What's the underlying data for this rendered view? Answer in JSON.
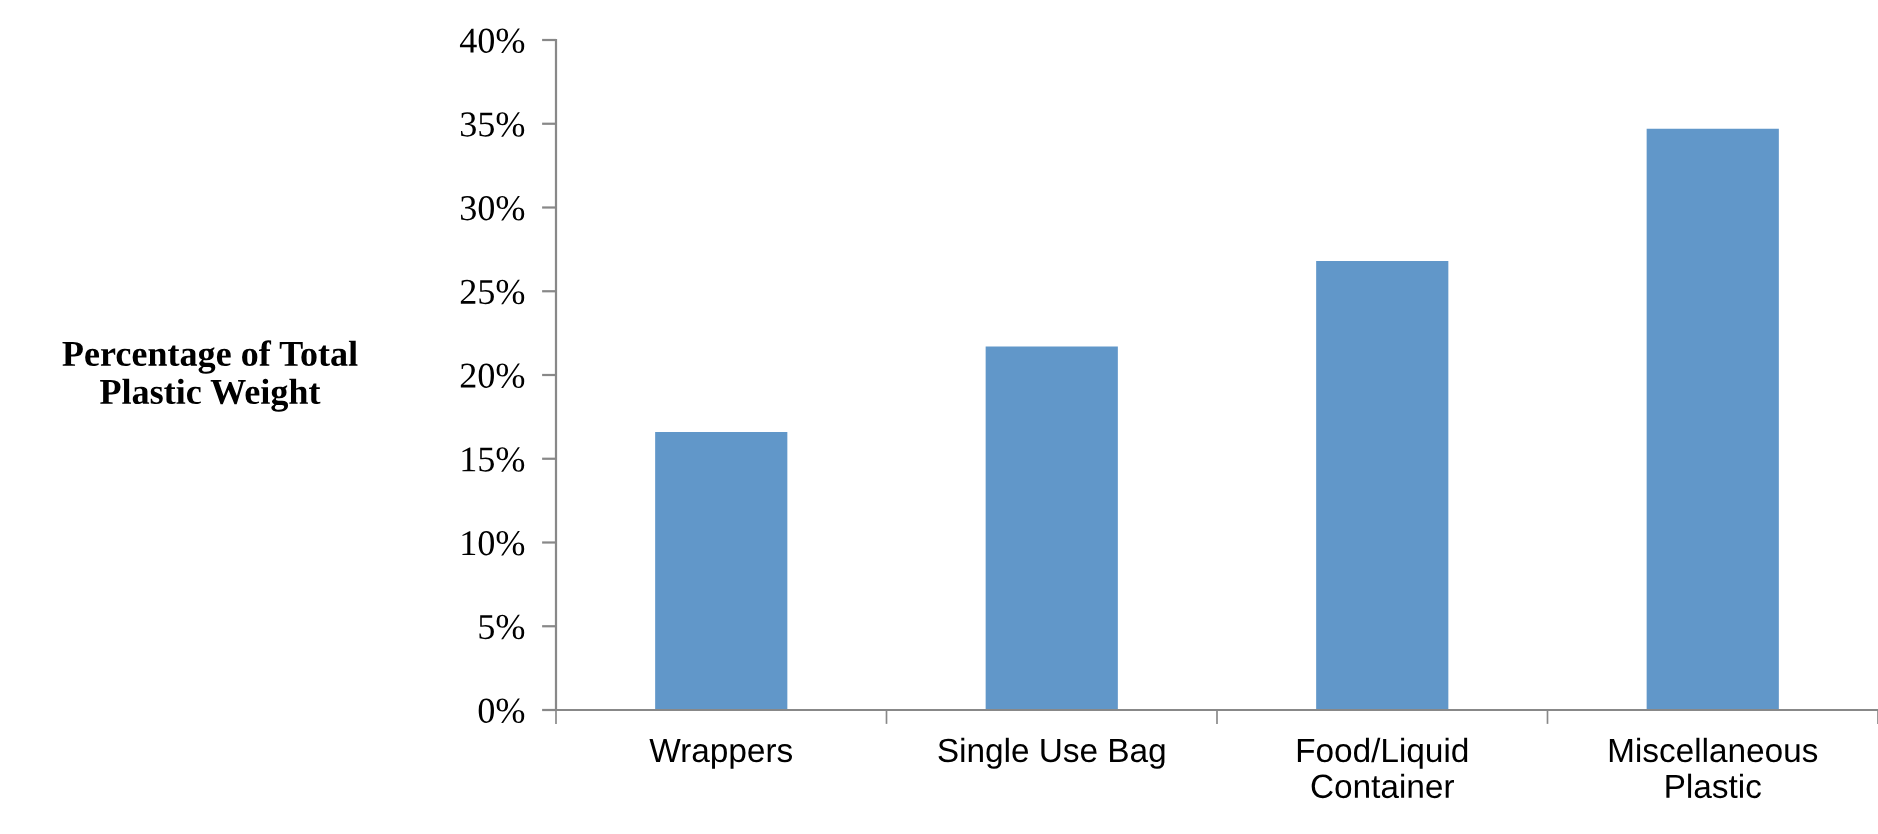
{
  "chart_data": {
    "type": "bar",
    "ylabel": "Percentage of Total\nPlastic Weight",
    "categories": [
      "Wrappers",
      "Single Use Bag",
      "Food/Liquid\nContainer",
      "Miscellaneous\nPlastic"
    ],
    "values": [
      16.6,
      21.7,
      26.8,
      34.7
    ],
    "color": "#6197c9",
    "ylim": [
      0,
      40
    ],
    "yticks": [
      {
        "value": 0,
        "label": "0%"
      },
      {
        "value": 5,
        "label": "5%"
      },
      {
        "value": 10,
        "label": "10%"
      },
      {
        "value": 15,
        "label": "15%"
      },
      {
        "value": 20,
        "label": "20%"
      },
      {
        "value": 25,
        "label": "25%"
      },
      {
        "value": 30,
        "label": "30%"
      },
      {
        "value": 35,
        "label": "35%"
      },
      {
        "value": 40,
        "label": "40%"
      }
    ],
    "grid": false,
    "legend": false
  }
}
